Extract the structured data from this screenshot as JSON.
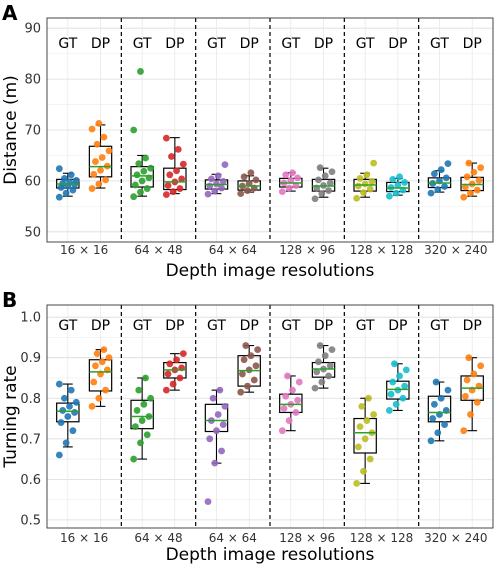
{
  "figure": {
    "panels": [
      {
        "label": "A"
      },
      {
        "label": "B"
      }
    ]
  },
  "chart_data": [
    {
      "type": "box",
      "panel_label": "A",
      "ylabel": "Distance (m)",
      "xlabel": "Depth image resolutions",
      "ylim": [
        48,
        92
      ],
      "yticks": [
        50,
        60,
        70,
        80,
        90
      ],
      "grid": true,
      "group_labels": [
        "16 × 16",
        "64 × 48",
        "64 × 64",
        "128 × 96",
        "128 × 128",
        "320 × 240"
      ],
      "sub_labels": [
        "GT",
        "DP"
      ],
      "colors": [
        "#1f77b4",
        "#ff7f0e",
        "#2ca02c",
        "#d62728",
        "#9467bd",
        "#8c564b",
        "#e377c2",
        "#7f7f7f",
        "#bcbd22",
        "#17becf",
        "#1f77b4",
        "#ff7f0e"
      ],
      "boxes": [
        {
          "group": "16 × 16",
          "series": "GT",
          "min": 57.0,
          "q1": 58.6,
          "median": 59.4,
          "q3": 60.3,
          "max": 61.5,
          "points": [
            56.8,
            57.6,
            58.2,
            58.7,
            59.0,
            59.3,
            59.5,
            59.8,
            60.1,
            60.5,
            61.2,
            62.4
          ]
        },
        {
          "group": "16 × 16",
          "series": "DP",
          "min": 58.6,
          "q1": 60.8,
          "median": 62.8,
          "q3": 66.8,
          "max": 71.0,
          "points": [
            58.5,
            59.4,
            60.2,
            61.3,
            62.1,
            62.9,
            63.8,
            64.6,
            65.9,
            67.2,
            68.6,
            70.2,
            71.3
          ]
        },
        {
          "group": "64 × 48",
          "series": "GT",
          "min": 57.0,
          "q1": 58.8,
          "median": 61.0,
          "q3": 62.8,
          "max": 65.0,
          "points": [
            56.9,
            57.8,
            58.5,
            59.2,
            60.0,
            60.6,
            61.2,
            61.9,
            62.5,
            63.4,
            64.5,
            70.0,
            81.5
          ]
        },
        {
          "group": "64 × 48",
          "series": "DP",
          "min": 57.5,
          "q1": 58.3,
          "median": 59.8,
          "q3": 62.5,
          "max": 68.5,
          "points": [
            57.3,
            57.9,
            58.5,
            59.1,
            59.8,
            60.4,
            61.2,
            62.0,
            63.3,
            64.8,
            66.2,
            68.4
          ]
        },
        {
          "group": "64 × 64",
          "series": "GT",
          "min": 57.5,
          "q1": 58.4,
          "median": 59.3,
          "q3": 60.2,
          "max": 61.3,
          "points": [
            57.4,
            58.0,
            58.6,
            59.0,
            59.4,
            59.9,
            60.4,
            61.0,
            63.2
          ]
        },
        {
          "group": "64 × 64",
          "series": "DP",
          "min": 57.8,
          "q1": 58.2,
          "median": 59.0,
          "q3": 60.0,
          "max": 61.0,
          "points": [
            57.5,
            58.1,
            58.6,
            59.0,
            59.5,
            60.2,
            60.8,
            61.6
          ]
        },
        {
          "group": "128 × 96",
          "series": "GT",
          "min": 58.0,
          "q1": 58.8,
          "median": 59.6,
          "q3": 60.5,
          "max": 61.6,
          "points": [
            57.9,
            58.6,
            59.1,
            59.6,
            60.1,
            60.6,
            61.2,
            61.6
          ]
        },
        {
          "group": "128 × 96",
          "series": "DP",
          "min": 56.8,
          "q1": 58.0,
          "median": 59.0,
          "q3": 60.3,
          "max": 62.5,
          "points": [
            56.5,
            57.5,
            58.1,
            58.6,
            59.1,
            59.6,
            60.2,
            61.0,
            61.8,
            62.6
          ]
        },
        {
          "group": "128 × 128",
          "series": "GT",
          "min": 56.8,
          "q1": 58.0,
          "median": 59.2,
          "q3": 60.3,
          "max": 61.5,
          "points": [
            56.6,
            57.7,
            58.4,
            59.0,
            59.4,
            59.9,
            60.5,
            61.2,
            63.5
          ]
        },
        {
          "group": "128 × 128",
          "series": "DP",
          "min": 57.2,
          "q1": 57.9,
          "median": 58.6,
          "q3": 59.7,
          "max": 60.5,
          "points": [
            57.0,
            57.6,
            58.2,
            58.7,
            59.2,
            59.7,
            60.3,
            60.8
          ]
        },
        {
          "group": "320 × 240",
          "series": "GT",
          "min": 57.8,
          "q1": 58.7,
          "median": 59.6,
          "q3": 60.6,
          "max": 62.0,
          "points": [
            57.6,
            58.3,
            58.9,
            59.5,
            60.0,
            60.6,
            61.4,
            62.2,
            63.4
          ]
        },
        {
          "group": "320 × 240",
          "series": "DP",
          "min": 57.0,
          "q1": 58.1,
          "median": 59.3,
          "q3": 60.7,
          "max": 63.5,
          "points": [
            56.8,
            57.6,
            58.2,
            58.8,
            59.4,
            60.1,
            60.8,
            61.7,
            62.6,
            63.5
          ]
        }
      ]
    },
    {
      "type": "box",
      "panel_label": "B",
      "ylabel": "Turning rate",
      "xlabel": "Depth image resolutions",
      "ylim": [
        0.48,
        1.03
      ],
      "yticks": [
        0.5,
        0.6,
        0.7,
        0.8,
        0.9,
        1.0
      ],
      "ytick_labels": [
        "0.5",
        "0.6",
        "0.7",
        "0.8",
        "0.9",
        "1.0"
      ],
      "grid": true,
      "group_labels": [
        "16 × 16",
        "64 × 48",
        "64 × 64",
        "128 × 96",
        "128 × 128",
        "320 × 240"
      ],
      "sub_labels": [
        "GT",
        "DP"
      ],
      "colors": [
        "#1f77b4",
        "#ff7f0e",
        "#2ca02c",
        "#d62728",
        "#9467bd",
        "#8c564b",
        "#e377c2",
        "#7f7f7f",
        "#bcbd22",
        "#17becf",
        "#1f77b4",
        "#ff7f0e"
      ],
      "boxes": [
        {
          "group": "16 × 16",
          "series": "GT",
          "min": 0.68,
          "q1": 0.742,
          "median": 0.768,
          "q3": 0.788,
          "max": 0.835,
          "points": [
            0.66,
            0.69,
            0.72,
            0.74,
            0.755,
            0.765,
            0.77,
            0.78,
            0.79,
            0.8,
            0.82,
            0.835
          ]
        },
        {
          "group": "16 × 16",
          "series": "DP",
          "min": 0.78,
          "q1": 0.818,
          "median": 0.865,
          "q3": 0.895,
          "max": 0.92,
          "points": [
            0.78,
            0.8,
            0.82,
            0.84,
            0.86,
            0.87,
            0.88,
            0.89,
            0.9,
            0.91,
            0.92
          ]
        },
        {
          "group": "64 × 48",
          "series": "GT",
          "min": 0.65,
          "q1": 0.725,
          "median": 0.755,
          "q3": 0.795,
          "max": 0.85,
          "points": [
            0.65,
            0.69,
            0.71,
            0.73,
            0.745,
            0.755,
            0.77,
            0.785,
            0.8,
            0.82,
            0.85
          ]
        },
        {
          "group": "64 × 48",
          "series": "DP",
          "min": 0.82,
          "q1": 0.85,
          "median": 0.87,
          "q3": 0.888,
          "max": 0.91,
          "points": [
            0.82,
            0.835,
            0.85,
            0.86,
            0.87,
            0.875,
            0.885,
            0.895,
            0.91
          ]
        },
        {
          "group": "64 × 64",
          "series": "GT",
          "min": 0.64,
          "q1": 0.718,
          "median": 0.745,
          "q3": 0.785,
          "max": 0.82,
          "points": [
            0.545,
            0.64,
            0.67,
            0.7,
            0.72,
            0.735,
            0.745,
            0.76,
            0.78,
            0.8,
            0.82
          ]
        },
        {
          "group": "64 × 64",
          "series": "DP",
          "min": 0.815,
          "q1": 0.83,
          "median": 0.868,
          "q3": 0.905,
          "max": 0.93,
          "points": [
            0.815,
            0.83,
            0.845,
            0.86,
            0.87,
            0.88,
            0.895,
            0.905,
            0.92,
            0.93
          ]
        },
        {
          "group": "128 × 96",
          "series": "GT",
          "min": 0.72,
          "q1": 0.765,
          "median": 0.785,
          "q3": 0.81,
          "max": 0.855,
          "points": [
            0.72,
            0.745,
            0.765,
            0.775,
            0.785,
            0.795,
            0.805,
            0.82,
            0.84,
            0.855
          ]
        },
        {
          "group": "128 × 96",
          "series": "DP",
          "min": 0.825,
          "q1": 0.852,
          "median": 0.872,
          "q3": 0.888,
          "max": 0.93,
          "points": [
            0.825,
            0.84,
            0.855,
            0.865,
            0.872,
            0.88,
            0.89,
            0.905,
            0.92,
            0.93
          ]
        },
        {
          "group": "128 × 128",
          "series": "GT",
          "min": 0.59,
          "q1": 0.665,
          "median": 0.715,
          "q3": 0.75,
          "max": 0.8,
          "points": [
            0.59,
            0.62,
            0.65,
            0.68,
            0.7,
            0.715,
            0.73,
            0.745,
            0.76,
            0.78,
            0.8
          ]
        },
        {
          "group": "128 × 128",
          "series": "DP",
          "min": 0.77,
          "q1": 0.798,
          "median": 0.822,
          "q3": 0.842,
          "max": 0.885,
          "points": [
            0.77,
            0.785,
            0.8,
            0.81,
            0.82,
            0.83,
            0.84,
            0.855,
            0.87,
            0.885
          ]
        },
        {
          "group": "320 × 240",
          "series": "GT",
          "min": 0.695,
          "q1": 0.742,
          "median": 0.765,
          "q3": 0.805,
          "max": 0.84,
          "points": [
            0.695,
            0.715,
            0.735,
            0.75,
            0.76,
            0.77,
            0.785,
            0.8,
            0.82,
            0.84
          ]
        },
        {
          "group": "320 × 240",
          "series": "DP",
          "min": 0.72,
          "q1": 0.795,
          "median": 0.825,
          "q3": 0.855,
          "max": 0.9,
          "points": [
            0.72,
            0.76,
            0.79,
            0.805,
            0.82,
            0.83,
            0.845,
            0.86,
            0.88,
            0.9
          ]
        }
      ]
    }
  ]
}
